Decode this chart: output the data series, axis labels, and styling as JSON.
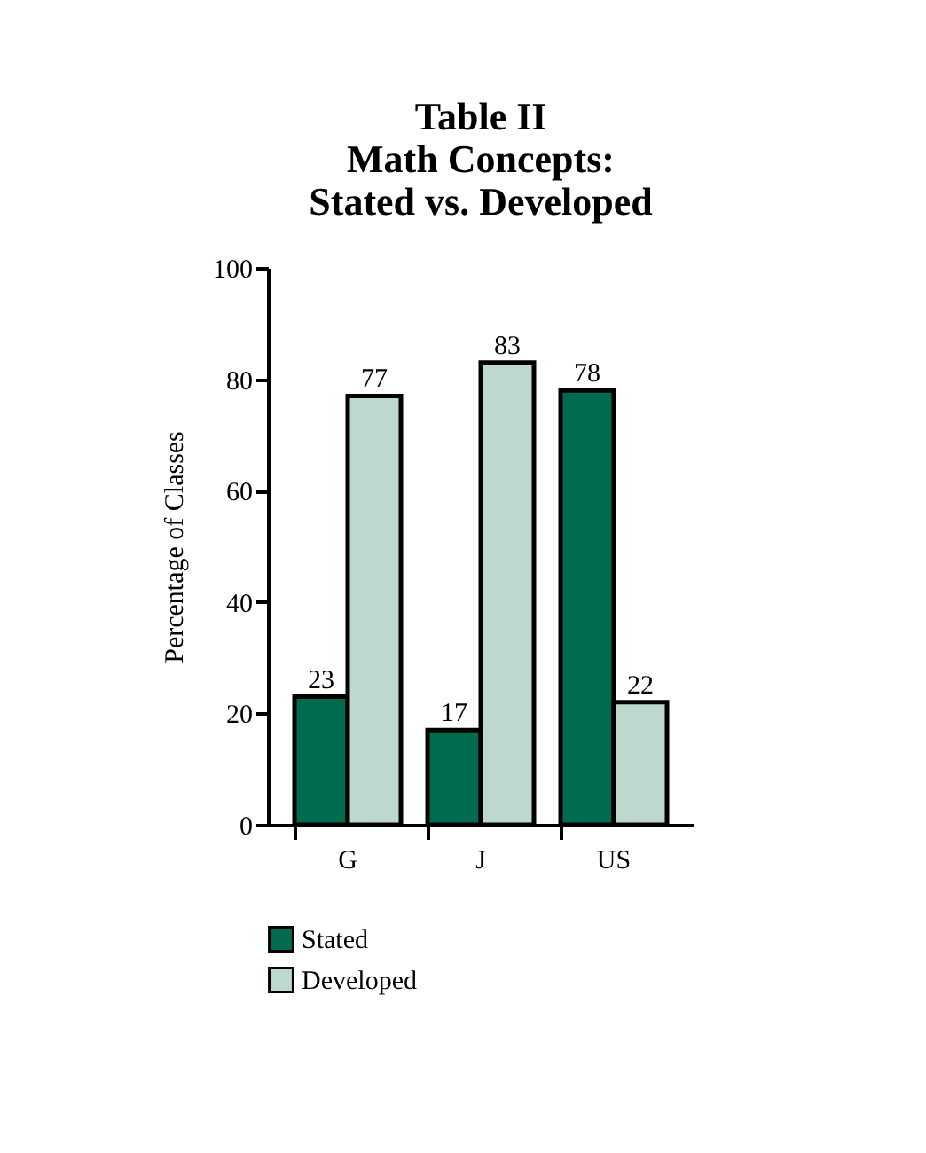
{
  "chart_data": {
    "type": "bar",
    "title": "Table II\nMath Concepts:\nStated vs. Developed",
    "ylabel": "Percentage of Classes",
    "categories": [
      "G",
      "J",
      "US"
    ],
    "series": [
      {
        "name": "Stated",
        "color": "#006b4f",
        "values": [
          23,
          17,
          78
        ]
      },
      {
        "name": "Developed",
        "color": "#bdd8cf",
        "values": [
          77,
          83,
          22
        ]
      }
    ],
    "ylim": [
      0,
      100
    ],
    "yticks": [
      0,
      20,
      40,
      60,
      80,
      100
    ],
    "data_labels": true,
    "grid": false,
    "legend": "bottom"
  }
}
